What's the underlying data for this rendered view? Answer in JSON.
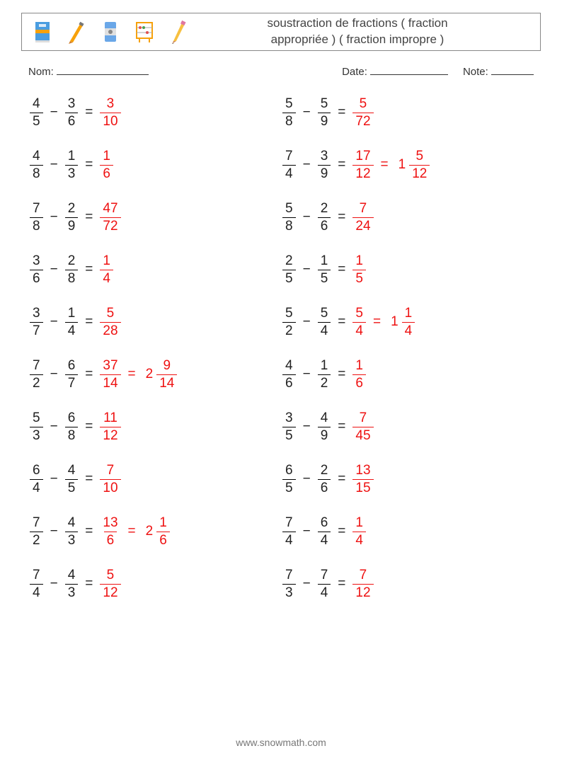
{
  "title_line1": "soustraction de fractions ( fraction",
  "title_line2": "appropriée ) ( fraction impropre )",
  "meta": {
    "name_label": "Nom:",
    "date_label": "Date:",
    "note_label": "Note:"
  },
  "footer": "www.snowmath.com",
  "icon_colors": {
    "book_cover": "#4a9de0",
    "book_band": "#f7a10a",
    "pencil_body": "#f7a10a",
    "pencil_tip": "#d08030",
    "sharpener_body": "#6aa7e8",
    "sharpener_mid": "#e0e0e0",
    "abacus_frame": "#f7a10a",
    "abacus_bead1": "#e05050",
    "abacus_bead2": "#4aa050",
    "pencil2_body": "#f7c040"
  },
  "left": [
    {
      "a": [
        4,
        5
      ],
      "b": [
        3,
        6
      ],
      "r": [
        3,
        10
      ]
    },
    {
      "a": [
        4,
        8
      ],
      "b": [
        1,
        3
      ],
      "r": [
        1,
        6
      ]
    },
    {
      "a": [
        7,
        8
      ],
      "b": [
        2,
        9
      ],
      "r": [
        47,
        72
      ]
    },
    {
      "a": [
        3,
        6
      ],
      "b": [
        2,
        8
      ],
      "r": [
        1,
        4
      ]
    },
    {
      "a": [
        3,
        7
      ],
      "b": [
        1,
        4
      ],
      "r": [
        5,
        28
      ]
    },
    {
      "a": [
        7,
        2
      ],
      "b": [
        6,
        7
      ],
      "r": [
        37,
        14
      ],
      "m": [
        2,
        9,
        14
      ]
    },
    {
      "a": [
        5,
        3
      ],
      "b": [
        6,
        8
      ],
      "r": [
        11,
        12
      ]
    },
    {
      "a": [
        6,
        4
      ],
      "b": [
        4,
        5
      ],
      "r": [
        7,
        10
      ]
    },
    {
      "a": [
        7,
        2
      ],
      "b": [
        4,
        3
      ],
      "r": [
        13,
        6
      ],
      "m": [
        2,
        1,
        6
      ]
    },
    {
      "a": [
        7,
        4
      ],
      "b": [
        4,
        3
      ],
      "r": [
        5,
        12
      ]
    }
  ],
  "right": [
    {
      "a": [
        5,
        8
      ],
      "b": [
        5,
        9
      ],
      "r": [
        5,
        72
      ]
    },
    {
      "a": [
        7,
        4
      ],
      "b": [
        3,
        9
      ],
      "r": [
        17,
        12
      ],
      "m": [
        1,
        5,
        12
      ]
    },
    {
      "a": [
        5,
        8
      ],
      "b": [
        2,
        6
      ],
      "r": [
        7,
        24
      ]
    },
    {
      "a": [
        2,
        5
      ],
      "b": [
        1,
        5
      ],
      "r": [
        1,
        5
      ]
    },
    {
      "a": [
        5,
        2
      ],
      "b": [
        5,
        4
      ],
      "r": [
        5,
        4
      ],
      "m": [
        1,
        1,
        4
      ]
    },
    {
      "a": [
        4,
        6
      ],
      "b": [
        1,
        2
      ],
      "r": [
        1,
        6
      ]
    },
    {
      "a": [
        3,
        5
      ],
      "b": [
        4,
        9
      ],
      "r": [
        7,
        45
      ]
    },
    {
      "a": [
        6,
        5
      ],
      "b": [
        2,
        6
      ],
      "r": [
        13,
        15
      ]
    },
    {
      "a": [
        7,
        4
      ],
      "b": [
        6,
        4
      ],
      "r": [
        1,
        4
      ]
    },
    {
      "a": [
        7,
        3
      ],
      "b": [
        7,
        4
      ],
      "r": [
        7,
        12
      ]
    }
  ]
}
